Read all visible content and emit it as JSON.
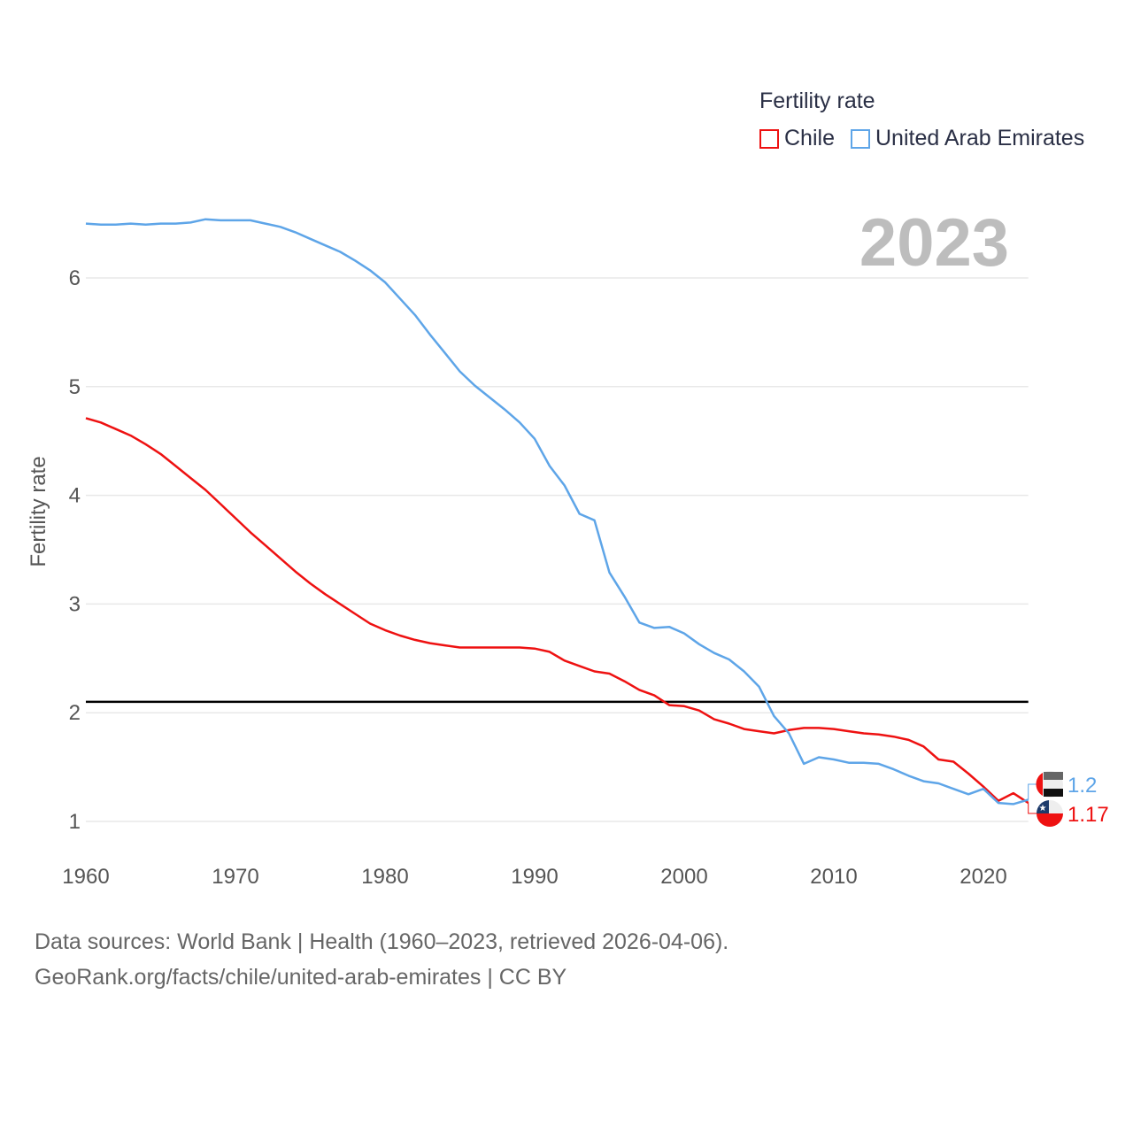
{
  "chart_data": {
    "type": "line",
    "legend_title": "Fertility rate",
    "legend_placement": "top-right",
    "ylabel": "Fertility rate",
    "xlabel": "",
    "year_badge": "2023",
    "xlim": [
      1960,
      2023
    ],
    "ylim": [
      0.75,
      6.75
    ],
    "xticks": [
      "1960",
      "1970",
      "1980",
      "1990",
      "2000",
      "2010",
      "2020"
    ],
    "yticks": [
      "1",
      "2",
      "3",
      "4",
      "5",
      "6"
    ],
    "grid": true,
    "reference_line": 2.1,
    "x": [
      1960,
      1961,
      1962,
      1963,
      1964,
      1965,
      1966,
      1967,
      1968,
      1969,
      1970,
      1971,
      1972,
      1973,
      1974,
      1975,
      1976,
      1977,
      1978,
      1979,
      1980,
      1981,
      1982,
      1983,
      1984,
      1985,
      1986,
      1987,
      1988,
      1989,
      1990,
      1991,
      1992,
      1993,
      1994,
      1995,
      1996,
      1997,
      1998,
      1999,
      2000,
      2001,
      2002,
      2003,
      2004,
      2005,
      2006,
      2007,
      2008,
      2009,
      2010,
      2011,
      2012,
      2013,
      2014,
      2015,
      2016,
      2017,
      2018,
      2019,
      2020,
      2021,
      2022,
      2023
    ],
    "series": [
      {
        "name": "Chile",
        "color": "#ee1111",
        "end_label": "1.17",
        "values": [
          4.71,
          4.67,
          4.61,
          4.55,
          4.47,
          4.38,
          4.27,
          4.16,
          4.05,
          3.92,
          3.79,
          3.66,
          3.54,
          3.42,
          3.3,
          3.19,
          3.09,
          3.0,
          2.91,
          2.82,
          2.76,
          2.71,
          2.67,
          2.64,
          2.62,
          2.6,
          2.6,
          2.6,
          2.6,
          2.6,
          2.59,
          2.56,
          2.48,
          2.43,
          2.38,
          2.36,
          2.29,
          2.21,
          2.16,
          2.07,
          2.06,
          2.02,
          1.94,
          1.9,
          1.85,
          1.83,
          1.81,
          1.84,
          1.86,
          1.86,
          1.85,
          1.83,
          1.81,
          1.8,
          1.78,
          1.75,
          1.69,
          1.57,
          1.55,
          1.44,
          1.32,
          1.19,
          1.26,
          1.17
        ]
      },
      {
        "name": "United Arab Emirates",
        "color": "#5ea5e8",
        "end_label": "1.2",
        "values": [
          6.5,
          6.49,
          6.49,
          6.5,
          6.49,
          6.5,
          6.5,
          6.51,
          6.54,
          6.53,
          6.53,
          6.53,
          6.5,
          6.47,
          6.42,
          6.36,
          6.3,
          6.24,
          6.16,
          6.07,
          5.96,
          5.81,
          5.66,
          5.48,
          5.31,
          5.14,
          5.01,
          4.9,
          4.79,
          4.67,
          4.52,
          4.27,
          4.09,
          3.83,
          3.77,
          3.29,
          3.07,
          2.83,
          2.78,
          2.79,
          2.73,
          2.63,
          2.55,
          2.49,
          2.38,
          2.24,
          1.97,
          1.81,
          1.53,
          1.59,
          1.57,
          1.54,
          1.54,
          1.53,
          1.48,
          1.42,
          1.37,
          1.35,
          1.3,
          1.25,
          1.3,
          1.17,
          1.16,
          1.2
        ]
      }
    ]
  },
  "footer": {
    "line1": "Data sources: World Bank | Health (1960–2023, retrieved 2026-04-06).",
    "line2": "GeoRank.org/facts/chile/united-arab-emirates | CC BY"
  }
}
